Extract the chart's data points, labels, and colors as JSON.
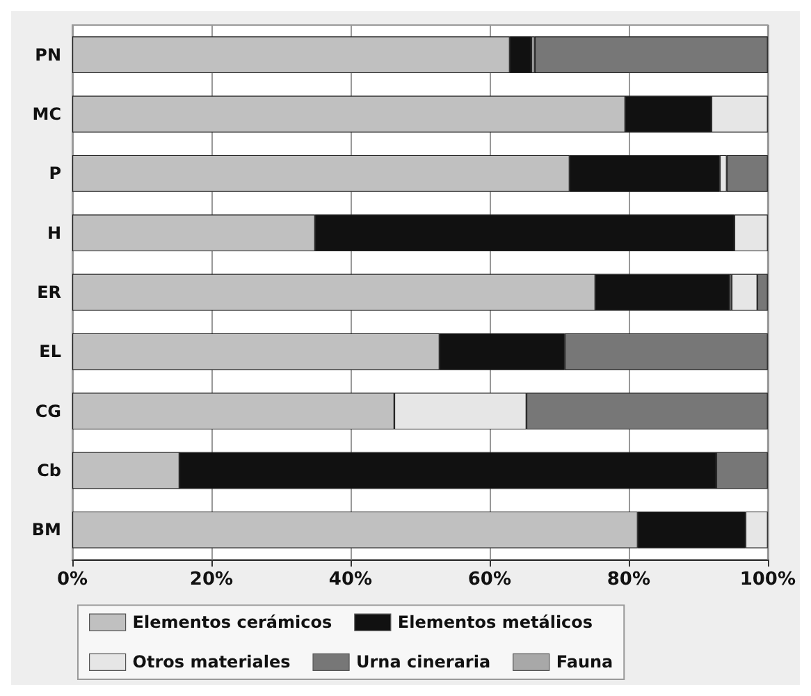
{
  "chart_data": {
    "type": "bar",
    "orientation": "horizontal",
    "stacked": true,
    "categories": [
      "PN",
      "MC",
      "P",
      "H",
      "ER",
      "EL",
      "CG",
      "Cb",
      "BM"
    ],
    "series": [
      {
        "name": "Elementos cerámicos",
        "color": "#c0c0c0",
        "values": [
          62.9,
          79.5,
          71.5,
          34.9,
          75.2,
          52.8,
          46.3,
          15.4,
          81.3
        ]
      },
      {
        "name": "Elementos metálicos",
        "color": "#111111",
        "values": [
          3.1,
          12.4,
          21.6,
          60.3,
          19.3,
          18.0,
          0,
          77.2,
          15.5
        ]
      },
      {
        "name": "Fauna",
        "color": "#a8a8a8",
        "values": [
          0.5,
          0,
          0,
          0,
          0.3,
          0,
          0,
          0,
          0
        ]
      },
      {
        "name": "Otros materiales",
        "color": "#e6e6e6",
        "values": [
          0,
          8.1,
          1.0,
          4.8,
          3.7,
          0,
          19.0,
          0,
          3.2
        ]
      },
      {
        "name": "Urna cineraria",
        "color": "#777777",
        "values": [
          33.5,
          0,
          5.9,
          0,
          1.5,
          29.2,
          34.7,
          7.4,
          0
        ]
      }
    ],
    "xlim": [
      0,
      100
    ],
    "xticks": [
      {
        "value": 0,
        "label": "0%"
      },
      {
        "value": 20,
        "label": "20%"
      },
      {
        "value": 40,
        "label": "40%"
      },
      {
        "value": 60,
        "label": "60%"
      },
      {
        "value": 80,
        "label": "80%"
      },
      {
        "value": 100,
        "label": "100%"
      }
    ],
    "grid": "x",
    "legend": "bottom"
  }
}
